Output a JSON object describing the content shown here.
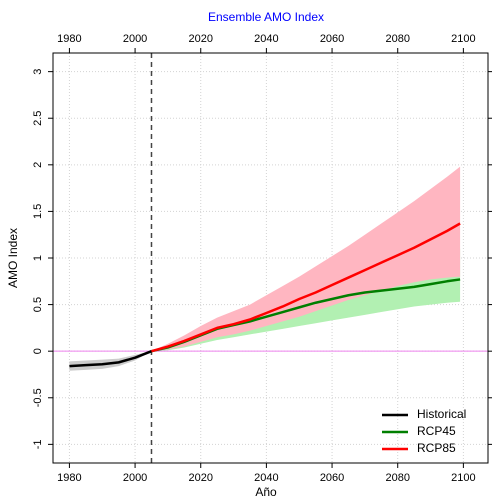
{
  "chart_data": {
    "type": "line",
    "title": "Ensemble AMO Index",
    "xlabel": "Año",
    "ylabel": "AMO Index",
    "xlim": [
      1975,
      2107.5
    ],
    "ylim": [
      -1.2,
      3.2
    ],
    "xticks": [
      1980,
      2000,
      2020,
      2040,
      2060,
      2080,
      2100
    ],
    "yticks": [
      -1,
      -0.5,
      0,
      0.5,
      1,
      1.5,
      2,
      2.5,
      3
    ],
    "grid": true,
    "legend": "bottom-right",
    "vline": 2005,
    "hline": 0,
    "hline_color": "#ee82ee",
    "series": [
      {
        "name": "Historical",
        "color": "#000000",
        "band_color": "#cccccc",
        "x": [
          1980,
          1985,
          1990,
          1995,
          2000,
          2005
        ],
        "values": [
          -0.16,
          -0.15,
          -0.14,
          -0.12,
          -0.07,
          0
        ],
        "lower": [
          -0.21,
          -0.2,
          -0.19,
          -0.16,
          -0.1,
          0
        ],
        "upper": [
          -0.11,
          -0.1,
          -0.09,
          -0.08,
          -0.04,
          0
        ]
      },
      {
        "name": "RCP45",
        "color": "#007f00",
        "band_color": "#b2f0b2",
        "x": [
          2005,
          2010,
          2015,
          2020,
          2025,
          2030,
          2035,
          2040,
          2045,
          2050,
          2055,
          2060,
          2065,
          2070,
          2075,
          2080,
          2085,
          2090,
          2095,
          2099
        ],
        "values": [
          0,
          0.04,
          0.1,
          0.17,
          0.24,
          0.28,
          0.32,
          0.37,
          0.42,
          0.47,
          0.52,
          0.56,
          0.6,
          0.63,
          0.65,
          0.67,
          0.69,
          0.72,
          0.75,
          0.77
        ],
        "lower": [
          0,
          0.01,
          0.04,
          0.08,
          0.12,
          0.15,
          0.18,
          0.21,
          0.24,
          0.27,
          0.3,
          0.33,
          0.36,
          0.39,
          0.42,
          0.45,
          0.48,
          0.5,
          0.52,
          0.53
        ],
        "upper": [
          0,
          0.07,
          0.15,
          0.25,
          0.33,
          0.38,
          0.43,
          0.5,
          0.57,
          0.63,
          0.68,
          0.73,
          0.78,
          0.83,
          0.88,
          0.93,
          0.98,
          1.03,
          1.08,
          1.1
        ]
      },
      {
        "name": "RCP85",
        "color": "#ff0000",
        "band_color": "#ffb6c1",
        "x": [
          2005,
          2010,
          2015,
          2020,
          2025,
          2030,
          2035,
          2040,
          2045,
          2050,
          2055,
          2060,
          2065,
          2070,
          2075,
          2080,
          2085,
          2090,
          2095,
          2099
        ],
        "values": [
          0,
          0.05,
          0.11,
          0.18,
          0.25,
          0.29,
          0.34,
          0.41,
          0.48,
          0.56,
          0.63,
          0.71,
          0.79,
          0.87,
          0.95,
          1.03,
          1.11,
          1.2,
          1.29,
          1.37
        ],
        "lower": [
          0,
          0.02,
          0.05,
          0.1,
          0.15,
          0.18,
          0.22,
          0.27,
          0.32,
          0.37,
          0.43,
          0.49,
          0.55,
          0.6,
          0.65,
          0.7,
          0.74,
          0.77,
          0.79,
          0.8
        ],
        "upper": [
          0,
          0.08,
          0.17,
          0.27,
          0.36,
          0.43,
          0.5,
          0.6,
          0.7,
          0.8,
          0.91,
          1.02,
          1.13,
          1.25,
          1.37,
          1.49,
          1.61,
          1.74,
          1.87,
          1.98
        ]
      }
    ]
  }
}
